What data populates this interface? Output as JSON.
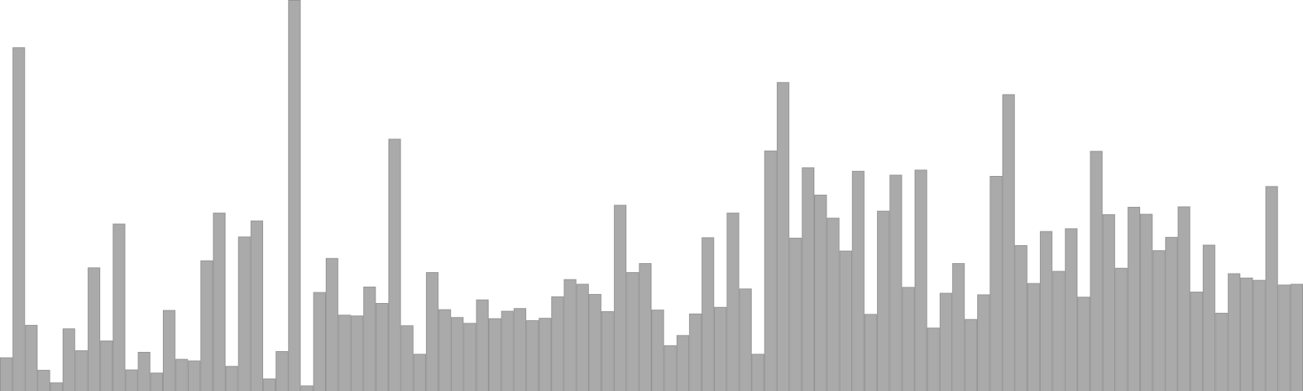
{
  "chart_data": {
    "type": "bar",
    "title": "",
    "xlabel": "",
    "ylabel": "",
    "grid": false,
    "legend": "none",
    "ylim": [
      0,
      100
    ],
    "bar_color": "#aaaaaa",
    "bar_edge_color": "#969696",
    "values": [
      8.6,
      87.9,
      16.9,
      5.4,
      2.2,
      16.0,
      10.4,
      31.6,
      12.9,
      42.8,
      5.5,
      10.0,
      4.7,
      20.7,
      8.2,
      7.8,
      33.4,
      45.6,
      6.4,
      39.5,
      43.6,
      3.2,
      10.2,
      100.0,
      1.4,
      25.3,
      34.0,
      19.5,
      19.3,
      26.7,
      22.5,
      64.5,
      16.8,
      9.5,
      30.4,
      20.9,
      18.9,
      17.4,
      23.4,
      18.6,
      20.5,
      21.2,
      18.1,
      18.7,
      24.2,
      28.6,
      27.4,
      24.8,
      20.4,
      47.6,
      30.4,
      32.7,
      20.8,
      11.7,
      14.3,
      19.8,
      39.3,
      21.5,
      45.6,
      26.2,
      9.5,
      61.5,
      79.0,
      39.2,
      57.2,
      50.2,
      44.3,
      35.9,
      56.3,
      19.7,
      46.1,
      55.3,
      26.6,
      56.6,
      16.2,
      25.1,
      32.7,
      18.4,
      24.7,
      55.0,
      75.9,
      37.3,
      27.6,
      40.9,
      30.7,
      41.6,
      24.1,
      61.4,
      45.2,
      31.5,
      47.1,
      45.3,
      36.0,
      39.4,
      47.2,
      25.4,
      37.4,
      20.0,
      30.1,
      29.0,
      28.4,
      52.4,
      27.2,
      27.4
    ]
  }
}
